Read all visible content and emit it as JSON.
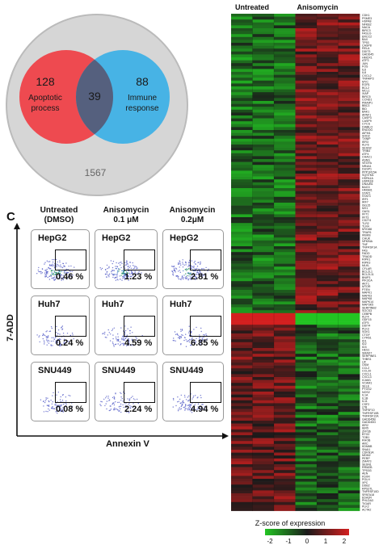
{
  "venn": {
    "apoptotic_count": "128",
    "apoptotic_label_1": "Apoptotic",
    "apoptotic_label_2": "process",
    "overlap_count": "39",
    "immune_count": "88",
    "immune_label_1": "Immune",
    "immune_label_2": "response",
    "outside_count": "1567",
    "colors": {
      "apoptotic": "#ee4a50",
      "immune": "#47b3e5",
      "overlap": "#55607e",
      "background": "#d6d6d6"
    }
  },
  "heatmap": {
    "col_header_untreated": "Untreated",
    "col_header_anisomycin": "Anisomycin",
    "scale_title": "Z-score of expression",
    "scale_ticks": [
      "-2",
      "-1",
      "0",
      "1",
      "2"
    ],
    "gene_labels": [
      "CDK1",
      "PSME3",
      "HSPA8",
      "NFKB2",
      "NACA",
      "BIRC3",
      "FASLG",
      "ERCC2",
      "BAX",
      "TP53",
      "CASP8",
      "RELA",
      "DDIT3",
      "GADD45",
      "HMOX1",
      "ATF3",
      "JUN",
      "FOS",
      "IL6",
      "IL8",
      "CXCL2",
      "TNFAIP3",
      "MYC",
      "EGR1",
      "BCL2",
      "MCL1",
      "XIAP",
      "BIRC5",
      "CCND1",
      "PMAIP1",
      "BBC3",
      "BID",
      "BAK1",
      "APAF1",
      "CASP3",
      "CASP9",
      "CYCS",
      "DIABLO",
      "ENDOG",
      "AIFM1",
      "SOD2",
      "TXNIP",
      "IER3",
      "KLF6",
      "SESN2",
      "TRIB3",
      "ATF4",
      "CHAC1",
      "ASNS",
      "VEGFA",
      "NR4A1",
      "DUSP1",
      "PPP1R15A",
      "SQSTM1",
      "HSPA1A",
      "HSPA1B",
      "DNAJB1",
      "BAG3",
      "HMGB1",
      "STAT1",
      "STAT3",
      "IRF1",
      "IRF7",
      "ISG15",
      "MX1",
      "OAS1",
      "IFIT1",
      "IFIT3",
      "CD274",
      "TLR2",
      "TLR4",
      "MYD88",
      "TRAF6",
      "IKBKB",
      "CHUK",
      "NFKBIA",
      "TNF",
      "TNFRSF1A",
      "FAS",
      "FADD",
      "TRADD",
      "RIPK1",
      "RIPK3",
      "MLKL",
      "CFLAR",
      "BCL2L1",
      "BCL2L11",
      "BNIP3",
      "PIK3CA",
      "AKT1",
      "MTOR",
      "PTEN",
      "MAPK1",
      "MAPK3",
      "MAPK8",
      "MAPK14",
      "MAP3K5",
      "SERPINB2",
      "SOCS3",
      "CEBPB",
      "KLF4",
      "GDF15",
      "ATF5",
      "DDIT4",
      "PLK3",
      "SGK1",
      "CTGF",
      "CYR61",
      "ID1",
      "ID2",
      "ID3",
      "HES1",
      "SMAD7",
      "SERPINE1",
      "THBS1",
      "LIF",
      "OSM",
      "CCL2",
      "CCL20",
      "CXCL1",
      "CXCL3",
      "ICAM1",
      "VCAM1",
      "SELE",
      "PTGS2",
      "NOS2",
      "IL1A",
      "IL1B",
      "IL11",
      "CSF2",
      "LTB",
      "TNFSF10",
      "TNFRSF10B",
      "TNFRSF12A",
      "GADD45B",
      "GADD45G",
      "IER2",
      "IER5",
      "ZFP36",
      "BTG2",
      "TOB1",
      "RHOB",
      "ARC",
      "KDM6B",
      "SNAI1",
      "CDKN1A",
      "MDM2",
      "PERP",
      "ZMAT3",
      "SESN1",
      "RRM2B",
      "TP53I3",
      "AEN",
      "FDXR",
      "POLH",
      "XPC",
      "DDB2",
      "RPS27L",
      "TNFRSF10D",
      "SPATA18",
      "EDA2R",
      "PHLDA3",
      "TIGAR",
      "PLK2",
      "ACTA2"
    ],
    "colors": {
      "neg": "#22c422",
      "zero": "#1a1a1a",
      "pos": "#d41f1f"
    }
  },
  "flow": {
    "panel_letter": "C",
    "columns": [
      {
        "line1": "Untreated",
        "line2": "(DMSO)"
      },
      {
        "line1": "Anisomycin",
        "line2": "0.1 μM"
      },
      {
        "line1": "Anisomycin",
        "line2": "0.2μM"
      }
    ],
    "cells": [
      {
        "cell_line": "HepG2",
        "percent": "0.46 %"
      },
      {
        "cell_line": "HepG2",
        "percent": "1.23 %"
      },
      {
        "cell_line": "HepG2",
        "percent": "2.81 %"
      },
      {
        "cell_line": "Huh7",
        "percent": "0.24 %"
      },
      {
        "cell_line": "Huh7",
        "percent": "4.59 %"
      },
      {
        "cell_line": "Huh7",
        "percent": "6.85 %"
      },
      {
        "cell_line": "SNU449",
        "percent": "0.08 %"
      },
      {
        "cell_line": "SNU449",
        "percent": "2.24 %"
      },
      {
        "cell_line": "SNU449",
        "percent": "4.94 %"
      }
    ],
    "y_axis_label": "7-ADD",
    "x_axis_label": "Annexin V"
  }
}
